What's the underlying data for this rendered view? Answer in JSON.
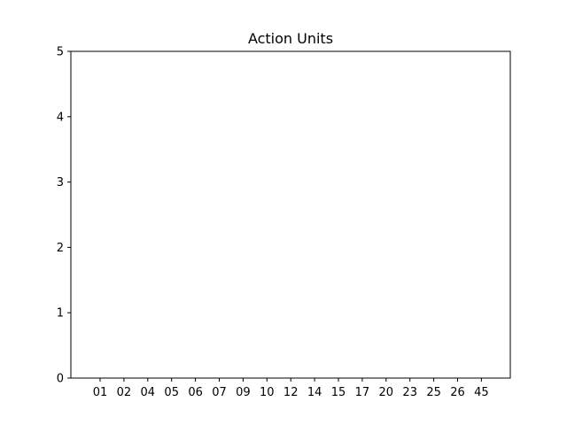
{
  "chart_data": {
    "type": "bar",
    "title": "Action Units",
    "xlabel": "",
    "ylabel": "",
    "categories": [
      "01",
      "02",
      "04",
      "05",
      "06",
      "07",
      "09",
      "10",
      "12",
      "14",
      "15",
      "17",
      "20",
      "23",
      "25",
      "26",
      "45"
    ],
    "values": [
      0,
      0,
      0,
      0,
      0,
      0,
      0,
      0,
      0,
      0,
      0,
      0,
      0,
      0,
      0,
      0,
      0
    ],
    "ylim": [
      0,
      5
    ],
    "yticks": [
      "0",
      "1",
      "2",
      "3",
      "4",
      "5"
    ],
    "grid": false,
    "colors": {
      "axis": "#000000",
      "background": "#ffffff",
      "bar": "#1f77b4"
    }
  }
}
